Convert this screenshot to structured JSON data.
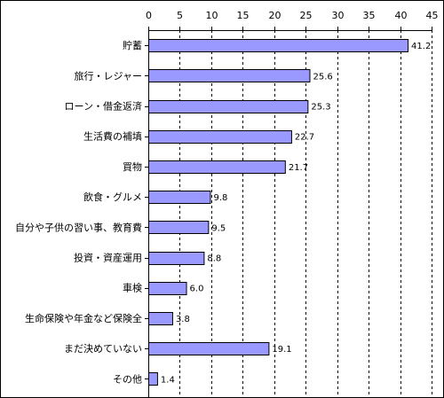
{
  "chart_data": {
    "type": "bar",
    "orientation": "horizontal",
    "categories": [
      "貯蓄",
      "旅行・レジャー",
      "ローン・借金返済",
      "生活費の補填",
      "買物",
      "飲食・グルメ",
      "自分や子供の習い事、教育費",
      "投資・資産運用",
      "車検",
      "生命保険や年金など保険全",
      "まだ決めていない",
      "その他"
    ],
    "values": [
      41.2,
      25.6,
      25.3,
      22.7,
      21.7,
      9.8,
      9.5,
      8.8,
      6.0,
      3.8,
      19.1,
      1.4
    ],
    "value_labels": [
      "41.2",
      "25.6",
      "25.3",
      "22.7",
      "21.7",
      "9.8",
      "9.5",
      "8.8",
      "6.0",
      "3.8",
      "19.1",
      "1.4"
    ],
    "xlim": [
      0,
      45
    ],
    "x_ticks": [
      0,
      5,
      10,
      15,
      20,
      25,
      30,
      35,
      40,
      45
    ],
    "axis_position": "top",
    "grid": "vertical dashed",
    "bar_color": "#9999ff",
    "bar_edge_color": "#000000",
    "legend": "none"
  }
}
